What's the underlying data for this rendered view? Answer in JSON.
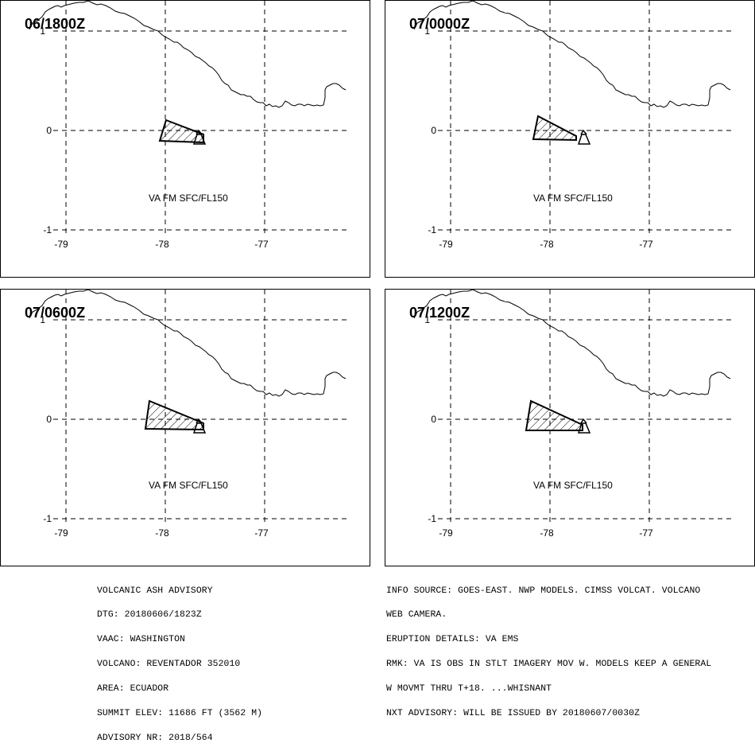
{
  "panels": [
    {
      "valid_time": "06/1800Z",
      "ash_label": "VA FM SFC/FL150"
    },
    {
      "valid_time": "07/0000Z",
      "ash_label": "VA FM SFC/FL150"
    },
    {
      "valid_time": "07/0600Z",
      "ash_label": "VA FM SFC/FL150"
    },
    {
      "valid_time": "07/1200Z",
      "ash_label": "VA FM SFC/FL150"
    }
  ],
  "axes": {
    "lat_ticks": [
      "1",
      "0",
      "-1"
    ],
    "lon_ticks": [
      "-79",
      "-78",
      "-77"
    ]
  },
  "advisory_left": [
    "VOLCANIC ASH ADVISORY",
    "DTG: 20180606/1823Z",
    "VAAC: WASHINGTON",
    "VOLCANO: REVENTADOR 352010",
    "AREA: ECUADOR",
    "SUMMIT ELEV: 11686 FT (3562 M)",
    "ADVISORY NR: 2018/564"
  ],
  "advisory_right": [
    "INFO SOURCE: GOES-EAST. NWP MODELS. CIMSS VOLCAT. VOLCANO",
    "WEB CAMERA.",
    "ERUPTION DETAILS: VA EMS",
    "RMK: VA IS OBS IN STLT IMAGERY MOV W. MODELS KEEP A GENERAL",
    "W MOVMT THRU T+18. ...WHISNANT",
    "NXT ADVISORY: WILL BE ISSUED BY 20180607/0030Z"
  ],
  "icons": {
    "volcano": "volcano-icon"
  }
}
